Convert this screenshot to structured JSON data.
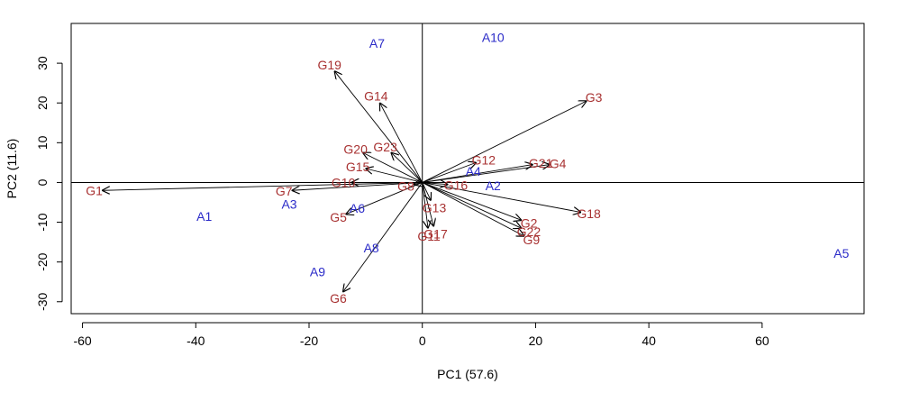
{
  "chart_data": {
    "type": "scatter",
    "title": "",
    "xlabel": "PC1 (57.6)",
    "ylabel": "PC2 (11.6)",
    "xlim": [
      -62,
      78
    ],
    "ylim": [
      -33,
      40
    ],
    "x_ticks": [
      "-60",
      "-40",
      "-20",
      "0",
      "20",
      "40",
      "60"
    ],
    "y_ticks": [
      "-30",
      "-20",
      "-10",
      "0",
      "10",
      "20",
      "30"
    ],
    "grid": false,
    "reference_lines": {
      "x": 0,
      "y": 0
    },
    "colors": {
      "observations": "#2b2bc8",
      "variables": "#a83232",
      "arrows": "#000000"
    },
    "series": [
      {
        "marker": "text-label",
        "points": [
          {
            "label": "A1",
            "x": -38.5,
            "y": -8.5
          },
          {
            "label": "A2",
            "x": 12.5,
            "y": -0.8
          },
          {
            "label": "A3",
            "x": -23.5,
            "y": -5.5
          },
          {
            "label": "A4",
            "x": 9.0,
            "y": 2.8
          },
          {
            "label": "A5",
            "x": 74.0,
            "y": -17.8
          },
          {
            "label": "A6",
            "x": -11.5,
            "y": -6.5
          },
          {
            "label": "A7",
            "x": -8.0,
            "y": 35.0
          },
          {
            "label": "A8",
            "x": -9.0,
            "y": -16.5
          },
          {
            "label": "A9",
            "x": -18.5,
            "y": -22.5
          },
          {
            "label": "A10",
            "x": 12.5,
            "y": 36.5
          }
        ]
      },
      {
        "marker": "arrow-from-origin",
        "points": [
          {
            "label": "G1",
            "x": -56.5,
            "y": -2.0
          },
          {
            "label": "G2",
            "x": 17.5,
            "y": -9.5
          },
          {
            "label": "G3",
            "x": 29.0,
            "y": 20.5
          },
          {
            "label": "G4",
            "x": 22.5,
            "y": 4.5
          },
          {
            "label": "G5",
            "x": -13.5,
            "y": -8.0
          },
          {
            "label": "G6",
            "x": -14.0,
            "y": -27.5
          },
          {
            "label": "G7",
            "x": -23.0,
            "y": -2.0
          },
          {
            "label": "G8",
            "x": -1.5,
            "y": -0.5
          },
          {
            "label": "G9",
            "x": 18.0,
            "y": -13.5
          },
          {
            "label": "G10",
            "x": -12.5,
            "y": 0.0
          },
          {
            "label": "G11",
            "x": 1.0,
            "y": -11.5
          },
          {
            "label": "G12",
            "x": 9.5,
            "y": 5.0
          },
          {
            "label": "G13",
            "x": 1.5,
            "y": -4.5
          },
          {
            "label": "G14",
            "x": -7.5,
            "y": 20.0
          },
          {
            "label": "G15",
            "x": -10.0,
            "y": 3.5
          },
          {
            "label": "G16",
            "x": 4.5,
            "y": -0.5
          },
          {
            "label": "G17",
            "x": 2.0,
            "y": -11.0
          },
          {
            "label": "G18",
            "x": 28.0,
            "y": -7.5
          },
          {
            "label": "G19",
            "x": -15.5,
            "y": 28.0
          },
          {
            "label": "G20",
            "x": -10.5,
            "y": 7.5
          },
          {
            "label": "G21",
            "x": 19.5,
            "y": 4.5
          },
          {
            "label": "G22",
            "x": 17.5,
            "y": -11.5
          },
          {
            "label": "G23",
            "x": -5.5,
            "y": 7.5
          }
        ]
      }
    ]
  }
}
